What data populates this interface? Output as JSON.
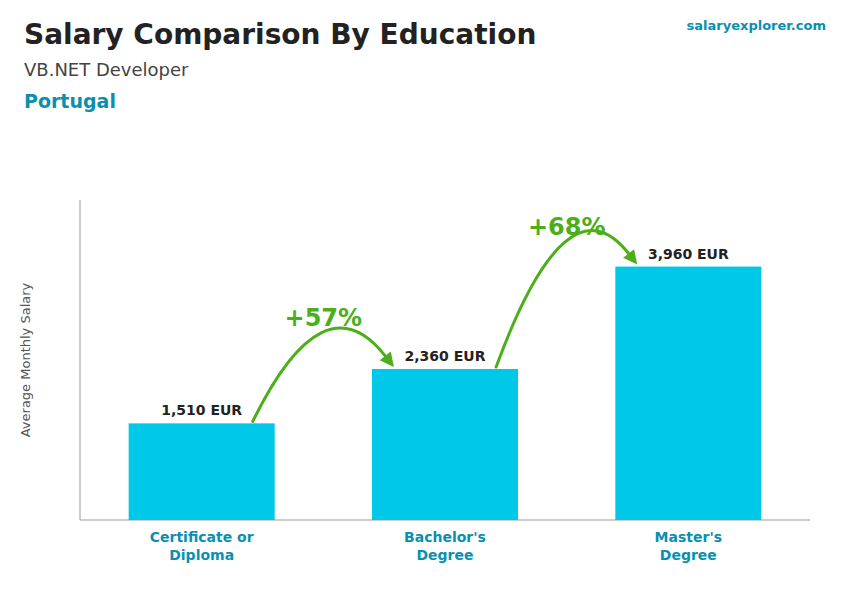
{
  "chart_data": {
    "type": "bar",
    "title": "Salary Comparison By Education",
    "subtitle": "VB.NET Developer",
    "annotations": [
      "Portugal",
      "salaryexplorer.com"
    ],
    "y_label": "Average Monthly Salary",
    "categories": [
      "Certificate or\nDiploma",
      "Bachelor's\nDegree",
      "Master's\nDegree"
    ],
    "values": [
      1510,
      2360,
      3960
    ],
    "value_labels": [
      "1,510 EUR",
      "2,360 EUR",
      "3,960 EUR"
    ],
    "change_labels": [
      "+57%",
      "+68%"
    ],
    "color": "#00c8e8",
    "ylim": [
      0,
      5000
    ],
    "data_labels": true,
    "tick_labels": "x",
    "grid": false
  }
}
